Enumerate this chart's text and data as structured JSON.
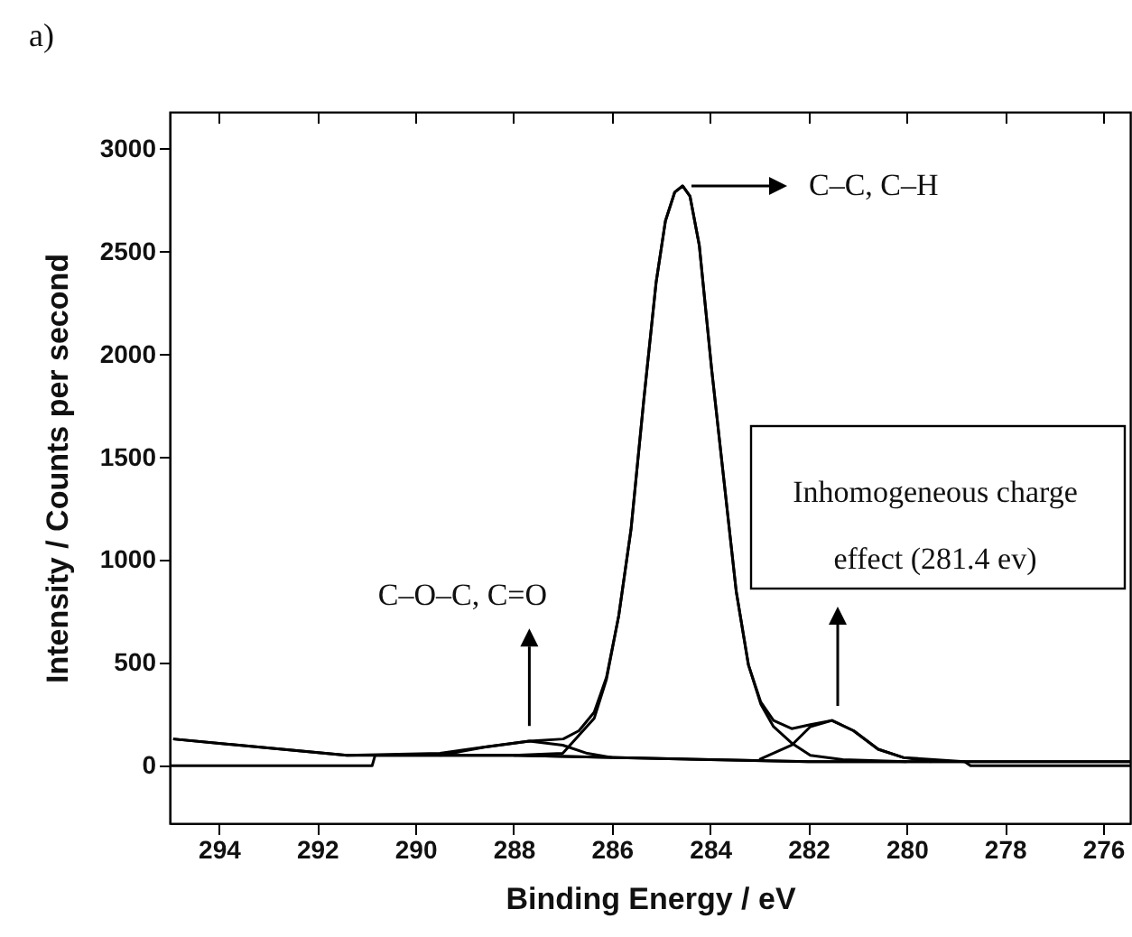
{
  "chart_data": {
    "type": "line",
    "title": "a)",
    "xlabel": "Binding Energy / eV",
    "ylabel": "Intensity / Counts per second",
    "xlim": [
      295,
      275.45
    ],
    "ylim": [
      -280,
      3180
    ],
    "xticks": [
      294,
      292,
      290,
      288,
      286,
      284,
      282,
      280,
      278,
      276
    ],
    "yticks": [
      0,
      500,
      1000,
      1500,
      2000,
      2500,
      3000
    ],
    "series": [
      {
        "color": "#000000",
        "x": [
          294.93,
          291.39,
          289.5,
          288.62,
          287.68,
          286.99,
          286.67,
          286.36,
          286.11,
          285.86,
          285.61,
          285.35,
          285.1,
          284.91,
          284.72,
          284.56,
          284.41,
          284.22,
          283.97,
          283.72,
          283.47,
          283.22,
          282.97,
          282.71,
          282.34,
          281.96,
          281.52,
          281.08,
          280.58,
          280.07,
          278.82,
          275.45
        ],
        "values": [
          130,
          50,
          60,
          90,
          120,
          130,
          170,
          260,
          430,
          730,
          1150,
          1780,
          2350,
          2650,
          2790,
          2820,
          2770,
          2530,
          1930,
          1390,
          850,
          490,
          310,
          220,
          180,
          200,
          220,
          170,
          80,
          40,
          20,
          20
        ]
      },
      {
        "color": "#000000",
        "x": [
          294.93,
          291.39,
          288,
          284,
          282,
          278.82,
          275.45
        ],
        "values": [
          130,
          50,
          50,
          30,
          20,
          20,
          20
        ]
      },
      {
        "color": "#000000",
        "x": [
          295,
          290.88,
          290.82,
          288,
          284,
          282,
          278.82,
          278.7,
          275.45
        ],
        "values": [
          0,
          0,
          50,
          50,
          30,
          20,
          20,
          0,
          0
        ]
      },
      {
        "color": "#000000",
        "x": [
          288,
          287,
          286.36,
          286.11,
          285.86,
          285.61,
          285.35,
          285.1,
          284.91,
          284.72,
          284.56,
          284.41,
          284.22,
          283.97,
          283.72,
          283.47,
          283.22,
          282.97,
          282.71,
          282.34,
          281.96,
          281.3,
          280
        ],
        "values": [
          50,
          60,
          230,
          420,
          730,
          1150,
          1780,
          2350,
          2650,
          2790,
          2820,
          2770,
          2530,
          1930,
          1390,
          850,
          490,
          300,
          190,
          110,
          50,
          30,
          20
        ]
      },
      {
        "color": "#000000",
        "x": [
          289.5,
          288.6,
          287.68,
          287,
          286.5,
          286
        ],
        "values": [
          50,
          90,
          120,
          100,
          60,
          40
        ]
      },
      {
        "color": "#000000",
        "x": [
          283,
          282.34,
          281.96,
          281.52,
          281.08,
          280.58,
          280.07,
          279.5
        ],
        "values": [
          30,
          100,
          190,
          220,
          170,
          80,
          40,
          20
        ]
      }
    ],
    "annotations": [
      "C–C, C–H",
      {
        "text": "C–O–C, C=O",
        "x": 287.68,
        "y": 123
      },
      "Inhomogeneous charge effect (281.4 ev)"
    ]
  }
}
